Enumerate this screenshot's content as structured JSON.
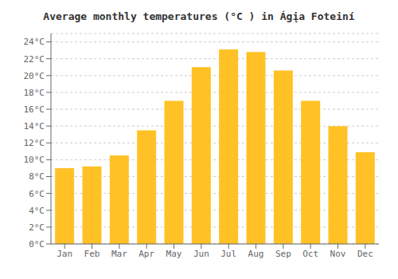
{
  "chart_data": {
    "type": "bar",
    "title": "Average monthly temperatures (°C ) in Ágįa Foteiní",
    "categories": [
      "Jan",
      "Feb",
      "Mar",
      "Apr",
      "May",
      "Jun",
      "Jul",
      "Aug",
      "Sep",
      "Oct",
      "Nov",
      "Dec"
    ],
    "values": [
      9.0,
      9.2,
      10.5,
      13.5,
      17.0,
      21.0,
      23.1,
      22.8,
      20.6,
      17.0,
      14.0,
      10.9
    ],
    "color": "#FFC125",
    "ylim": [
      0,
      25
    ],
    "yticks": [
      {
        "value": 0,
        "label": "0°C"
      },
      {
        "value": 2,
        "label": "2°C"
      },
      {
        "value": 4,
        "label": "4°C"
      },
      {
        "value": 6,
        "label": "6°C"
      },
      {
        "value": 8,
        "label": "8°C"
      },
      {
        "value": 10,
        "label": "10°C"
      },
      {
        "value": 12,
        "label": "12°C"
      },
      {
        "value": 14,
        "label": "14°C"
      },
      {
        "value": 16,
        "label": "16°C"
      },
      {
        "value": 18,
        "label": "18°C"
      },
      {
        "value": 20,
        "label": "20°C"
      },
      {
        "value": 22,
        "label": "22°C"
      },
      {
        "value": 24,
        "label": "24°C"
      }
    ],
    "grid": true
  }
}
